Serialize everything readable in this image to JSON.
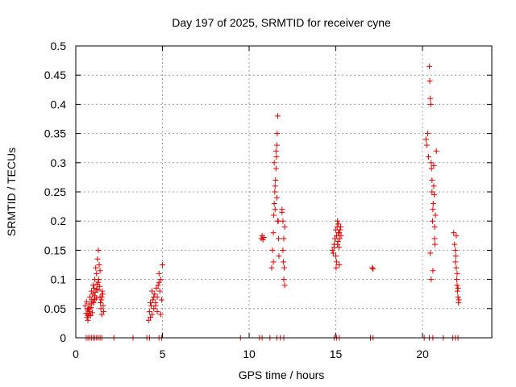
{
  "chart_data": {
    "type": "scatter",
    "title": "Day 197 of 2025, SRMTID for receiver cyne",
    "xlabel": "GPS time / hours",
    "ylabel": "SRMTID / TECUs",
    "xlim": [
      0,
      24
    ],
    "ylim": [
      0,
      0.5
    ],
    "xticks": [
      0,
      5,
      10,
      15,
      20
    ],
    "xtick_labels": [
      "0",
      "5",
      "10",
      "15",
      "20"
    ],
    "yticks": [
      0,
      0.05,
      0.1,
      0.15,
      0.2,
      0.25,
      0.3,
      0.35,
      0.4,
      0.45,
      0.5
    ],
    "ytick_labels": [
      "0",
      "0.05",
      "0.1",
      "0.15",
      "0.2",
      "0.25",
      "0.3",
      "0.35",
      "0.4",
      "0.45",
      "0.5"
    ],
    "grid": true,
    "marker": "+",
    "color": "#e00000",
    "series": [
      {
        "name": "SRMTID",
        "x": [
          0.55,
          0.6,
          0.62,
          0.65,
          0.68,
          0.7,
          0.72,
          0.75,
          0.78,
          0.8,
          0.82,
          0.85,
          0.88,
          0.9,
          0.92,
          0.95,
          0.98,
          1.0,
          1.02,
          1.05,
          1.08,
          1.1,
          1.12,
          1.15,
          1.18,
          1.2,
          1.22,
          1.25,
          1.28,
          1.3,
          1.32,
          1.35,
          1.38,
          1.4,
          1.42,
          1.45,
          1.48,
          1.5,
          1.52,
          1.55,
          1.58,
          1.6,
          0.7,
          0.9,
          1.1,
          1.3,
          1.5,
          0.8,
          1.0,
          1.2,
          1.4,
          4.2,
          4.25,
          4.3,
          4.35,
          4.4,
          4.45,
          4.5,
          4.55,
          4.6,
          4.65,
          4.7,
          4.75,
          4.8,
          4.85,
          4.9,
          4.95,
          5.0,
          4.3,
          4.5,
          4.7,
          4.9,
          4.4,
          4.6,
          4.8,
          10.7,
          10.75,
          10.8,
          10.85,
          11.3,
          11.35,
          11.4,
          11.42,
          11.45,
          11.48,
          11.5,
          11.52,
          11.55,
          11.58,
          11.6,
          11.62,
          11.65,
          11.68,
          11.7,
          11.72,
          11.4,
          11.5,
          11.6,
          11.45,
          11.55,
          11.65,
          11.9,
          11.95,
          12.0,
          12.02,
          12.05,
          11.95,
          12.0,
          11.9,
          12.05,
          11.98,
          14.8,
          14.85,
          14.9,
          14.95,
          15.0,
          15.02,
          15.05,
          15.08,
          15.1,
          15.12,
          15.15,
          15.18,
          15.2,
          15.22,
          15.25,
          15.28,
          15.3,
          15.0,
          15.1,
          15.2,
          14.9,
          15.05,
          15.15,
          17.1,
          17.15,
          20.2,
          20.25,
          20.3,
          20.35,
          20.4,
          20.42,
          20.45,
          20.48,
          20.5,
          20.52,
          20.55,
          20.58,
          20.6,
          20.62,
          20.65,
          20.68,
          20.7,
          20.72,
          20.75,
          20.8,
          20.5,
          20.6,
          20.7,
          20.45,
          20.55,
          20.65,
          21.8,
          21.85,
          21.9,
          21.92,
          21.95,
          21.98,
          22.0,
          22.02,
          22.05,
          22.08,
          22.1,
          21.9,
          22.0,
          22.05,
          21.95,
          0.6,
          0.7,
          0.8,
          0.9,
          1.0,
          1.1,
          1.2,
          1.3,
          1.4,
          1.5,
          2.2,
          3.3,
          4.1,
          4.25,
          4.8,
          4.95,
          9.5,
          10.6,
          10.75,
          11.2,
          11.6,
          11.8,
          12.0,
          14.9,
          15.05,
          15.2,
          17.0,
          17.15,
          20.1,
          20.4,
          20.6,
          21.2,
          21.75,
          21.9,
          22.05
        ],
        "y": [
          0.055,
          0.042,
          0.062,
          0.035,
          0.048,
          0.03,
          0.05,
          0.04,
          0.058,
          0.045,
          0.07,
          0.038,
          0.052,
          0.08,
          0.065,
          0.043,
          0.075,
          0.09,
          0.06,
          0.085,
          0.072,
          0.1,
          0.078,
          0.12,
          0.068,
          0.11,
          0.092,
          0.135,
          0.082,
          0.15,
          0.1,
          0.125,
          0.088,
          0.07,
          0.06,
          0.05,
          0.065,
          0.04,
          0.08,
          0.075,
          0.055,
          0.045,
          0.038,
          0.058,
          0.066,
          0.095,
          0.07,
          0.05,
          0.062,
          0.083,
          0.115,
          0.03,
          0.045,
          0.035,
          0.055,
          0.04,
          0.065,
          0.05,
          0.075,
          0.06,
          0.085,
          0.07,
          0.09,
          0.095,
          0.08,
          0.1,
          0.065,
          0.125,
          0.06,
          0.07,
          0.045,
          0.04,
          0.08,
          0.055,
          0.11,
          0.17,
          0.175,
          0.168,
          0.172,
          0.12,
          0.15,
          0.18,
          0.21,
          0.23,
          0.25,
          0.26,
          0.27,
          0.29,
          0.31,
          0.33,
          0.35,
          0.38,
          0.2,
          0.17,
          0.14,
          0.13,
          0.22,
          0.24,
          0.3,
          0.32,
          0.2,
          0.215,
          0.2,
          0.17,
          0.12,
          0.09,
          0.15,
          0.1,
          0.22,
          0.19,
          0.13,
          0.15,
          0.145,
          0.16,
          0.17,
          0.185,
          0.12,
          0.175,
          0.19,
          0.2,
          0.165,
          0.18,
          0.155,
          0.125,
          0.17,
          0.185,
          0.19,
          0.175,
          0.14,
          0.16,
          0.18,
          0.155,
          0.13,
          0.195,
          0.12,
          0.118,
          0.34,
          0.33,
          0.35,
          0.31,
          0.465,
          0.44,
          0.41,
          0.4,
          0.3,
          0.29,
          0.25,
          0.2,
          0.22,
          0.23,
          0.26,
          0.245,
          0.17,
          0.16,
          0.21,
          0.32,
          0.1,
          0.115,
          0.19,
          0.145,
          0.27,
          0.295,
          0.18,
          0.16,
          0.15,
          0.14,
          0.12,
          0.1,
          0.09,
          0.08,
          0.07,
          0.06,
          0.065,
          0.13,
          0.11,
          0.085,
          0.175,
          0,
          0,
          0,
          0,
          0,
          0,
          0,
          0,
          0,
          0,
          0,
          0,
          0,
          0,
          0,
          0,
          0,
          0,
          0,
          0,
          0,
          0,
          0,
          0,
          0,
          0,
          0,
          0,
          0,
          0,
          0,
          0,
          0,
          0,
          0
        ]
      }
    ]
  }
}
